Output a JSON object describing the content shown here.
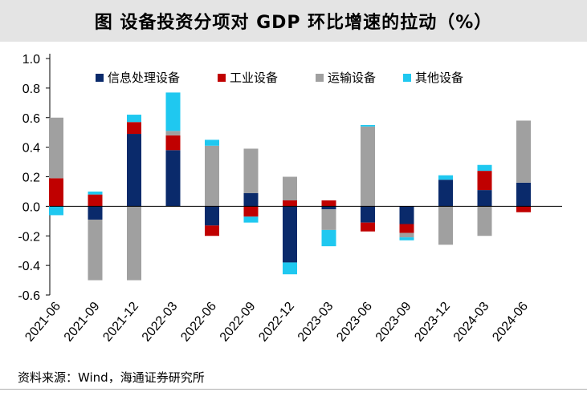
{
  "chart_data": {
    "type": "bar",
    "stacked": true,
    "title": "图  设备投资分项对 GDP 环比增速的拉动（%）",
    "xlabel": "",
    "ylabel": "",
    "ylim": [
      -0.6,
      1.0
    ],
    "yticks": [
      "1.0",
      "0.8",
      "0.6",
      "0.4",
      "0.2",
      "0.0",
      "-0.2",
      "-0.4",
      "-0.6"
    ],
    "ytick_values": [
      1.0,
      0.8,
      0.6,
      0.4,
      0.2,
      0.0,
      -0.2,
      -0.4,
      -0.6
    ],
    "categories": [
      "2021-06",
      "2021-09",
      "2021-12",
      "2022-03",
      "2022-06",
      "2022-09",
      "2022-12",
      "2023-03",
      "2023-06",
      "2023-09",
      "2023-12",
      "2024-03",
      "2024-06"
    ],
    "legend_position": "top",
    "series": [
      {
        "name": "信息处理设备",
        "color": "#0a2a6b",
        "values": [
          0.0,
          -0.09,
          0.49,
          0.38,
          -0.13,
          0.09,
          -0.38,
          -0.02,
          -0.11,
          -0.12,
          0.18,
          0.11,
          0.16
        ]
      },
      {
        "name": "工业设备",
        "color": "#c00000",
        "values": [
          0.19,
          0.08,
          0.08,
          0.1,
          -0.07,
          -0.07,
          0.04,
          0.04,
          -0.06,
          -0.06,
          0.0,
          0.13,
          -0.04
        ]
      },
      {
        "name": "运输设备",
        "color": "#a0a0a0",
        "values": [
          0.41,
          -0.41,
          -0.5,
          0.03,
          0.41,
          0.3,
          0.16,
          -0.14,
          0.54,
          -0.03,
          -0.26,
          -0.2,
          0.42
        ]
      },
      {
        "name": "其他设备",
        "color": "#1fc8f0",
        "values": [
          -0.06,
          0.02,
          0.05,
          0.26,
          0.04,
          -0.04,
          -0.08,
          -0.11,
          0.01,
          -0.02,
          0.03,
          0.04,
          0.0
        ]
      }
    ]
  },
  "footer": {
    "source": "资料来源：Wind，海通证券研究所"
  }
}
